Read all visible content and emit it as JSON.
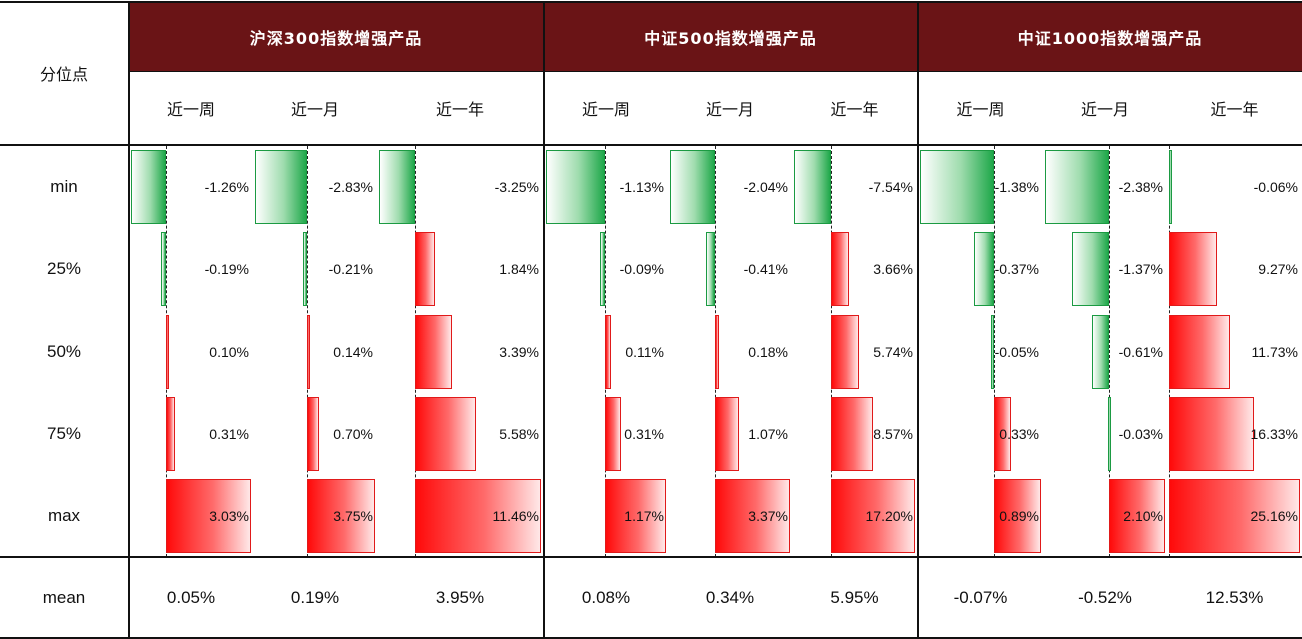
{
  "table": {
    "row_header_label": "分位点",
    "mean_label": "mean",
    "row_labels": [
      "min",
      "25%",
      "50%",
      "75%",
      "max"
    ]
  },
  "chart_data": {
    "type": "table",
    "groups": [
      {
        "name": "沪深300指数增强产品",
        "periods": [
          {
            "label": "近一周",
            "values": [
              -1.26,
              -0.19,
              0.1,
              0.31,
              3.03
            ],
            "labels": [
              "-1.26%",
              "-0.19%",
              "0.10%",
              "0.31%",
              "3.03%"
            ],
            "mean": "0.05%"
          },
          {
            "label": "近一月",
            "values": [
              -2.83,
              -0.21,
              0.14,
              0.7,
              3.75
            ],
            "labels": [
              "-2.83%",
              "-0.21%",
              "0.14%",
              "0.70%",
              "3.75%"
            ],
            "mean": "0.19%"
          },
          {
            "label": "近一年",
            "values": [
              -3.25,
              1.84,
              3.39,
              5.58,
              11.46
            ],
            "labels": [
              "-3.25%",
              "1.84%",
              "3.39%",
              "5.58%",
              "11.46%"
            ],
            "mean": "3.95%"
          }
        ]
      },
      {
        "name": "中证500指数增强产品",
        "periods": [
          {
            "label": "近一周",
            "values": [
              -1.13,
              -0.09,
              0.11,
              0.31,
              1.17
            ],
            "labels": [
              "-1.13%",
              "-0.09%",
              "0.11%",
              "0.31%",
              "1.17%"
            ],
            "mean": "0.08%"
          },
          {
            "label": "近一月",
            "values": [
              -2.04,
              -0.41,
              0.18,
              1.07,
              3.37
            ],
            "labels": [
              "-2.04%",
              "-0.41%",
              "0.18%",
              "1.07%",
              "3.37%"
            ],
            "mean": "0.34%"
          },
          {
            "label": "近一年",
            "values": [
              -7.54,
              3.66,
              5.74,
              8.57,
              17.2
            ],
            "labels": [
              "-7.54%",
              "3.66%",
              "5.74%",
              "8.57%",
              "17.20%"
            ],
            "mean": "5.95%"
          }
        ]
      },
      {
        "name": "中证1000指数增强产品",
        "periods": [
          {
            "label": "近一周",
            "values": [
              -1.38,
              -0.37,
              -0.05,
              0.33,
              0.89
            ],
            "labels": [
              "-1.38%",
              "-0.37%",
              "-0.05%",
              "0.33%",
              "0.89%"
            ],
            "mean": "-0.07%"
          },
          {
            "label": "近一月",
            "values": [
              -2.38,
              -1.37,
              -0.61,
              -0.03,
              2.1
            ],
            "labels": [
              "-2.38%",
              "-1.37%",
              "-0.61%",
              "-0.03%",
              "2.10%"
            ],
            "mean": "-0.52%"
          },
          {
            "label": "近一年",
            "values": [
              -0.06,
              9.27,
              11.73,
              16.33,
              25.16
            ],
            "labels": [
              "-0.06%",
              "9.27%",
              "11.73%",
              "16.33%",
              "25.16%"
            ],
            "mean": "12.53%"
          }
        ]
      }
    ],
    "positive_color": "#ff1a1a",
    "negative_color": "#1fa84a",
    "header_color": "#6a1416"
  }
}
